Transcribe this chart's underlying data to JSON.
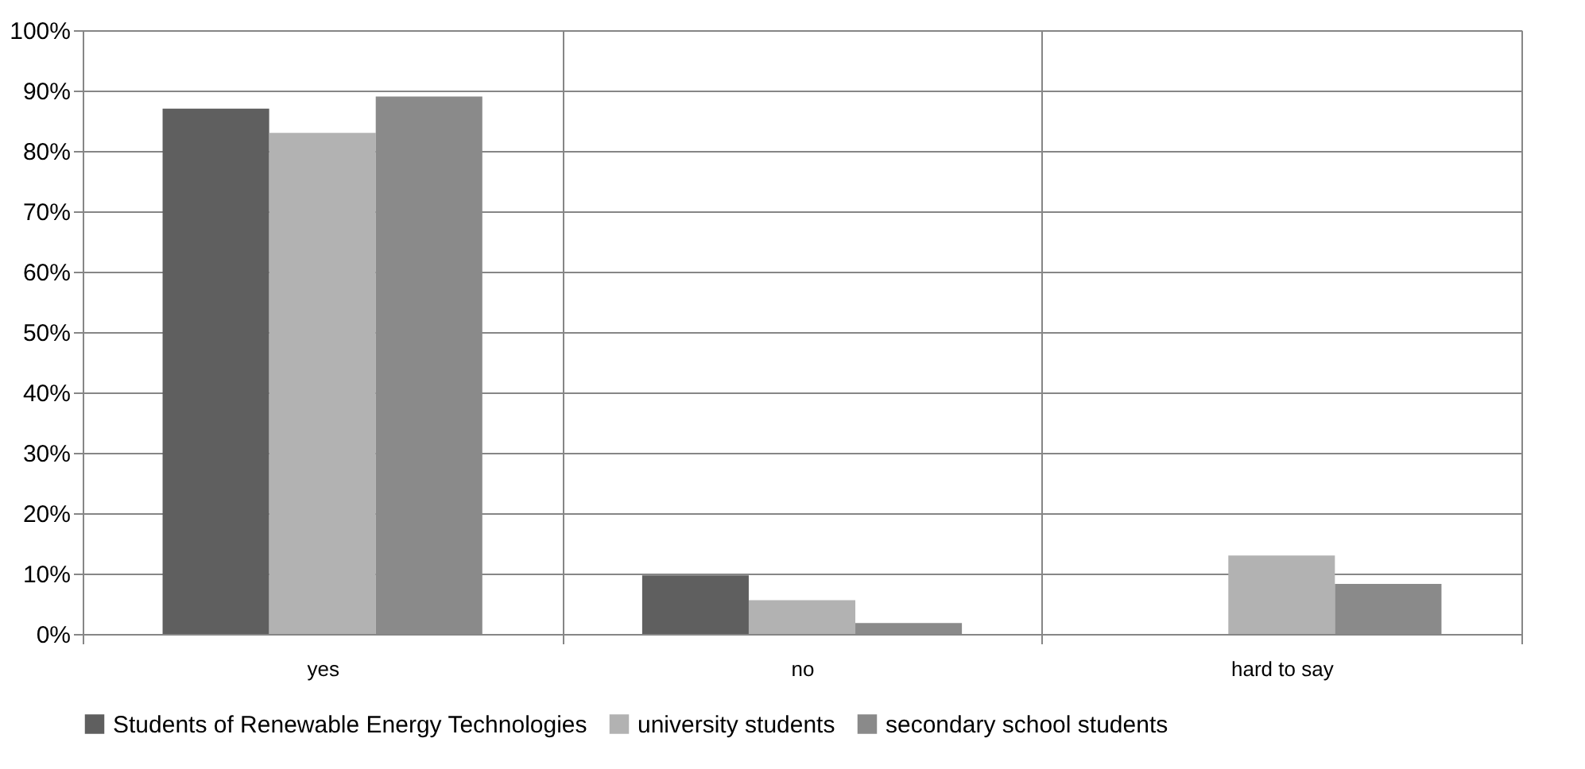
{
  "chart_data": {
    "type": "bar",
    "categories": [
      "yes",
      "no",
      "hard to say"
    ],
    "series": [
      {
        "name": "Students of Renewable Energy Technologies",
        "color": "#5f5f5f",
        "values": [
          87,
          9.7,
          0
        ]
      },
      {
        "name": "university students",
        "color": "#b2b2b2",
        "values": [
          83,
          5.6,
          13
        ]
      },
      {
        "name": "secondary school students",
        "color": "#8a8a8a",
        "values": [
          89,
          1.8,
          8.3
        ]
      }
    ],
    "ylim": [
      0,
      100
    ],
    "yticks": [
      {
        "value": 0,
        "label": "0%"
      },
      {
        "value": 10,
        "label": "10%"
      },
      {
        "value": 20,
        "label": "20%"
      },
      {
        "value": 30,
        "label": "30%"
      },
      {
        "value": 40,
        "label": "40%"
      },
      {
        "value": 50,
        "label": "50%"
      },
      {
        "value": 60,
        "label": "60%"
      },
      {
        "value": 70,
        "label": "70%"
      },
      {
        "value": 80,
        "label": "80%"
      },
      {
        "value": 90,
        "label": "90%"
      },
      {
        "value": 100,
        "label": "100%"
      }
    ],
    "grid": true,
    "legend": "bottom"
  }
}
